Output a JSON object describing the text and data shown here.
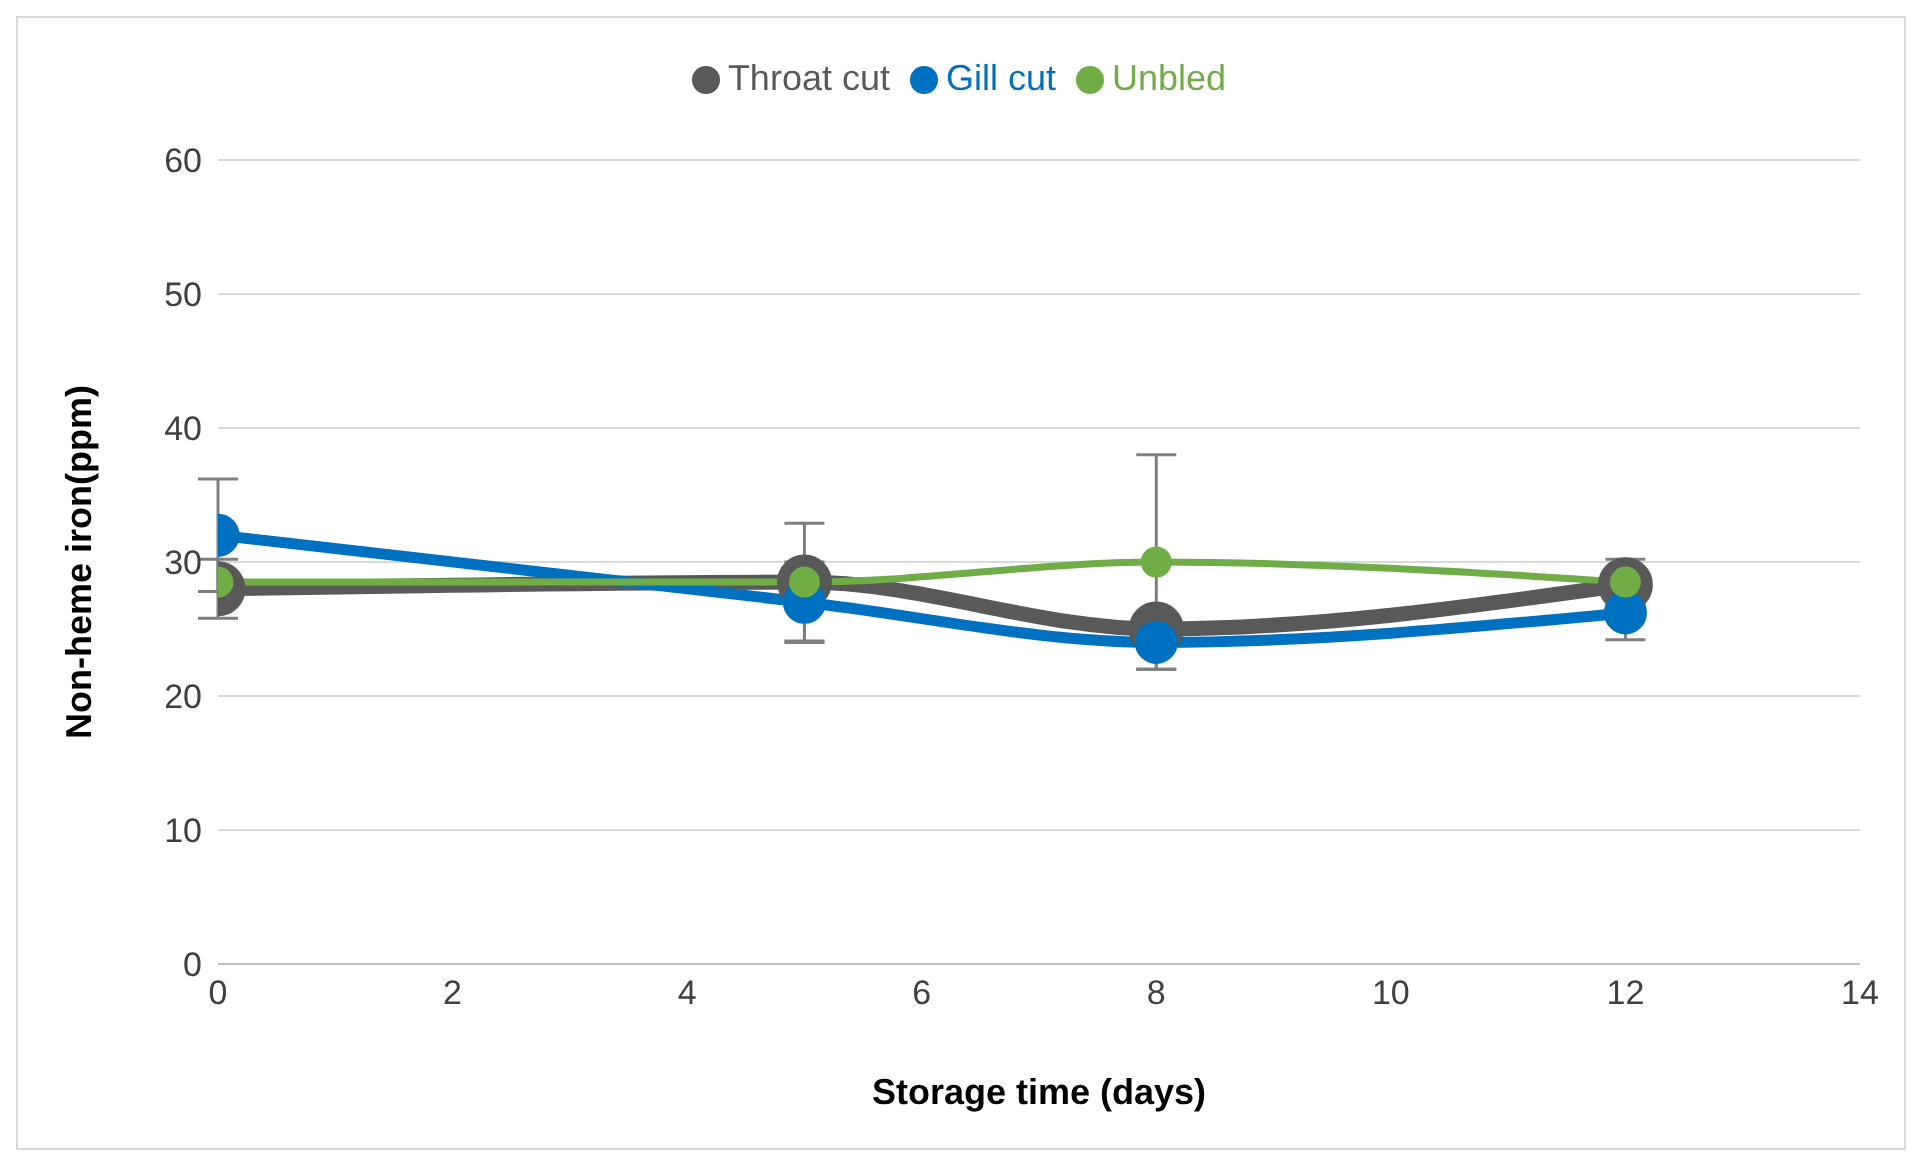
{
  "chart_data": {
    "type": "line",
    "xlabel": "Storage time (days)",
    "ylabel": "Non-heme iron(ppm)",
    "x": [
      0,
      5,
      8,
      12
    ],
    "series": [
      {
        "name": "Throat cut",
        "color": "#595959",
        "values": [
          28,
          28.5,
          25,
          28.3
        ],
        "errors": [
          2.2,
          null,
          0.7,
          null
        ]
      },
      {
        "name": "Gill cut",
        "color": "#0070c0",
        "values": [
          32,
          27,
          24,
          26.2
        ],
        "errors": [
          4.2,
          3,
          2,
          2
        ]
      },
      {
        "name": "Unbled",
        "color": "#70ad47",
        "values": [
          28.5,
          28.5,
          30,
          28.5
        ],
        "errors": [
          null,
          4.4,
          8,
          1.7
        ]
      }
    ],
    "xlim": [
      0,
      14
    ],
    "xticks": [
      0,
      2,
      4,
      6,
      8,
      10,
      12,
      14
    ],
    "ylim": [
      0,
      60
    ],
    "yticks": [
      0,
      10,
      20,
      30,
      40,
      50,
      60
    ],
    "grid": "y",
    "legend": "top",
    "marker": "circle",
    "line_style": "solid"
  }
}
